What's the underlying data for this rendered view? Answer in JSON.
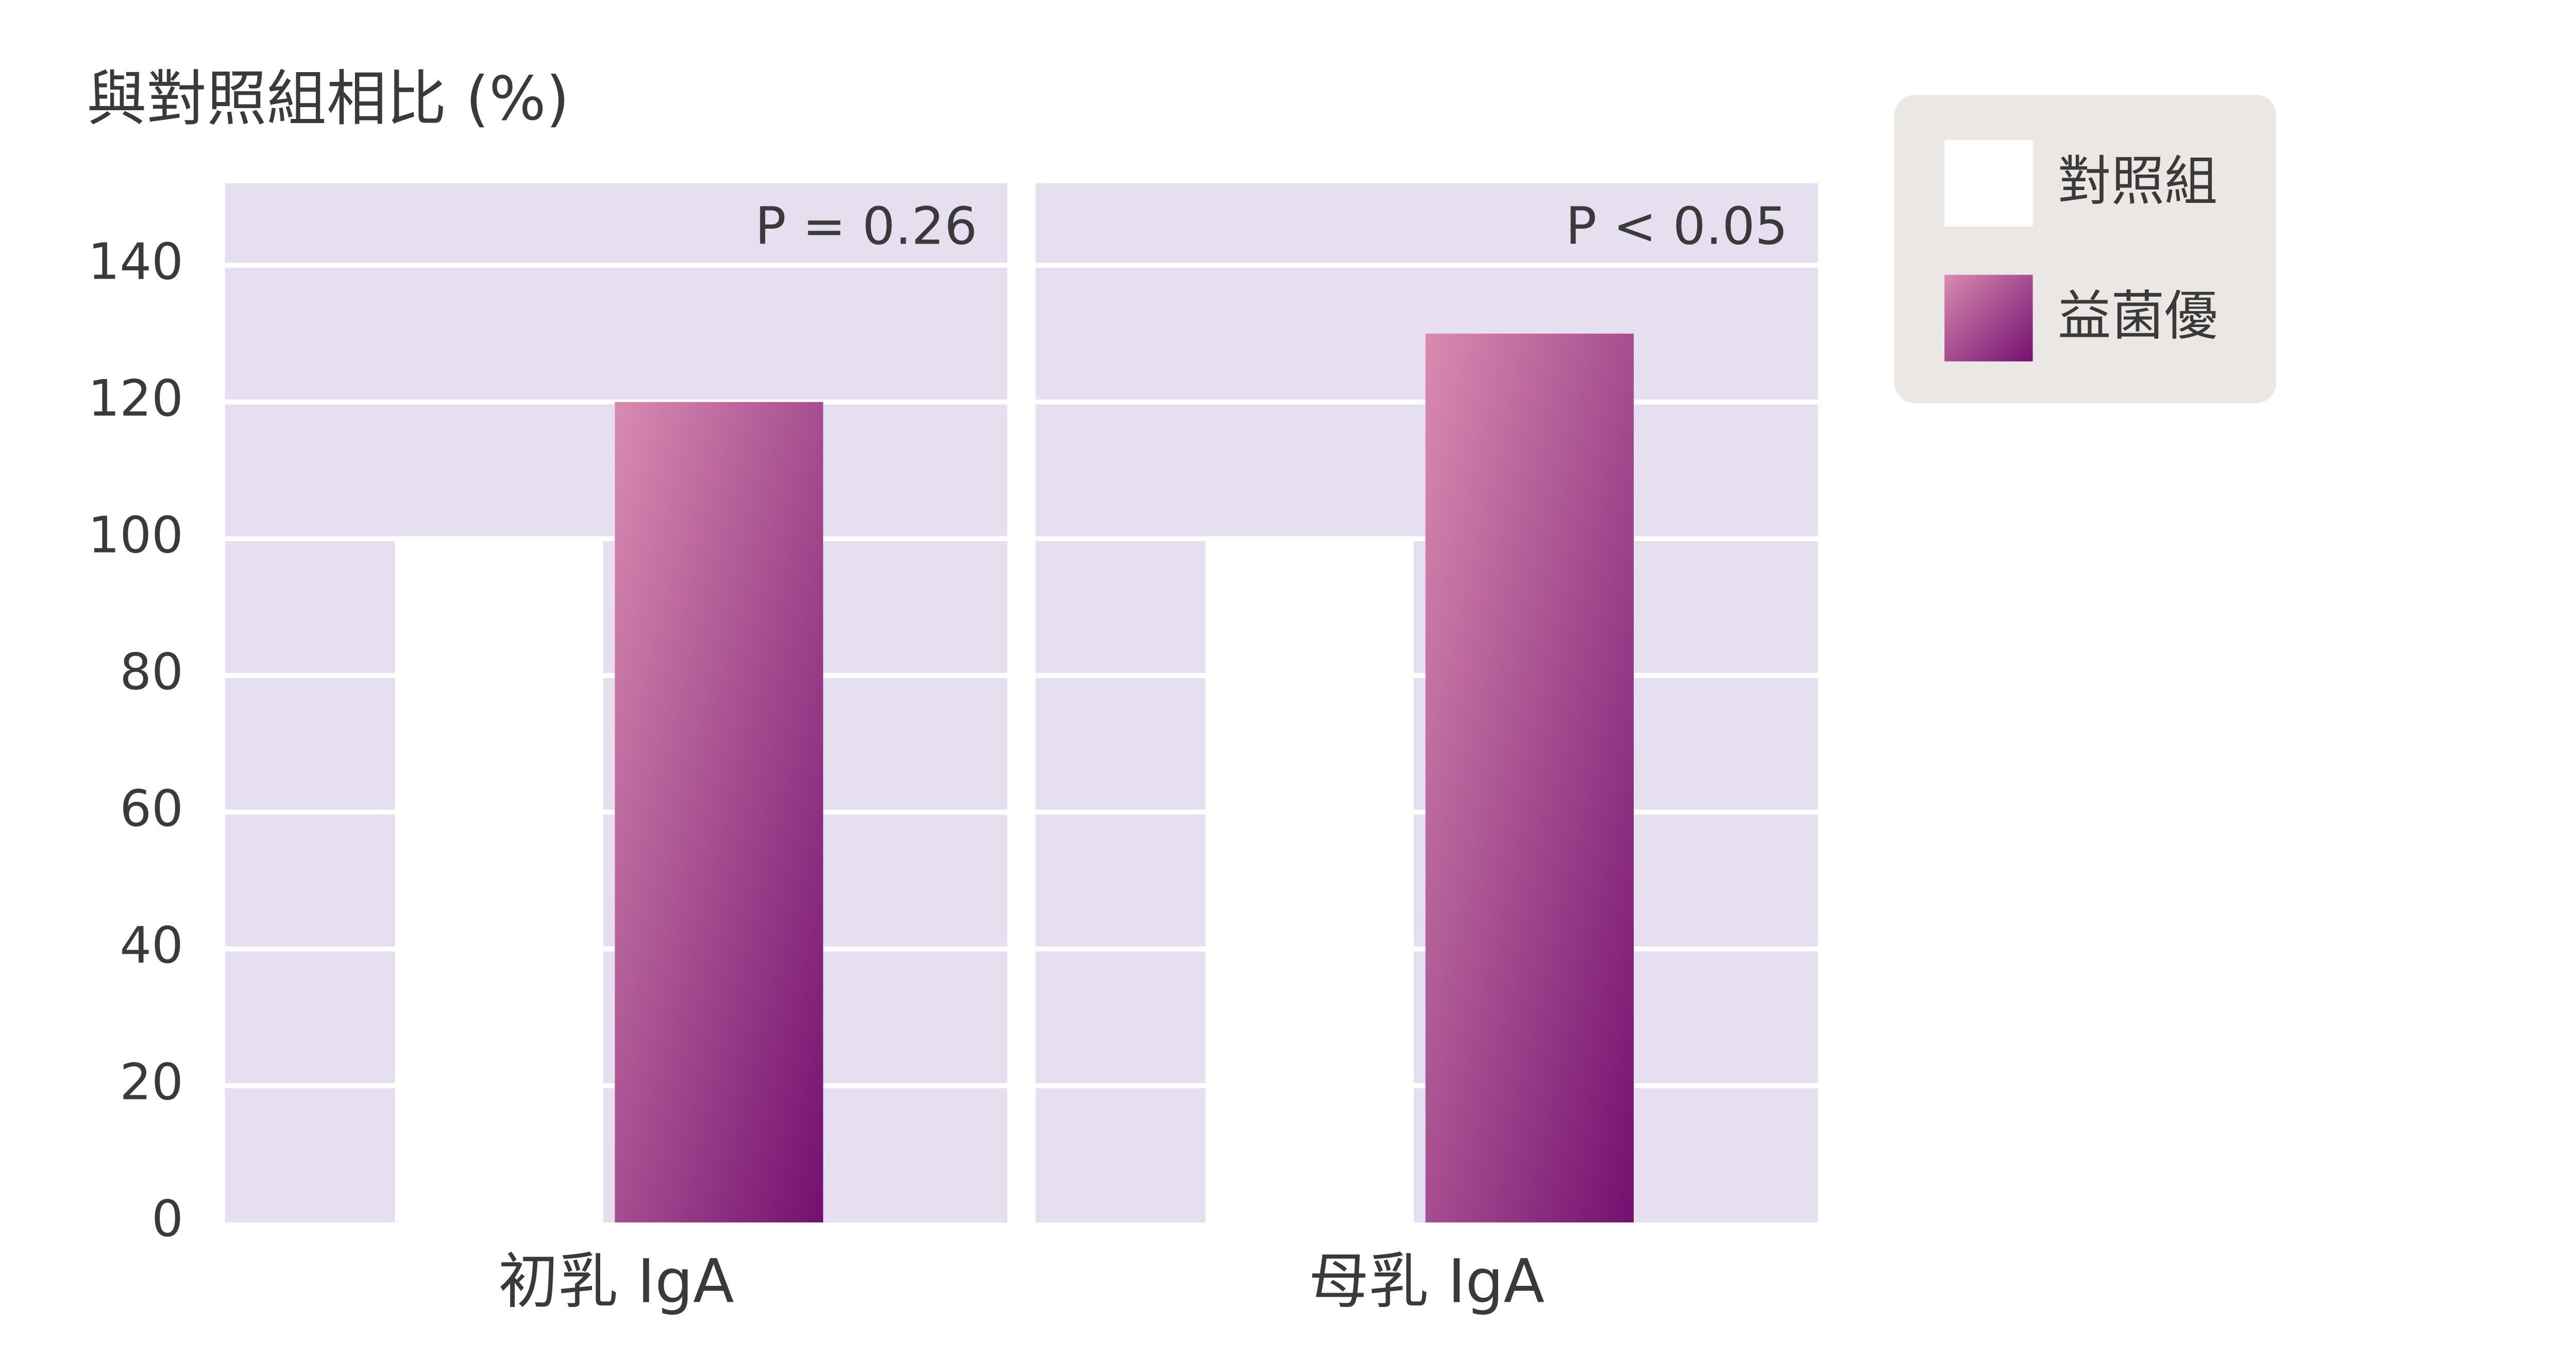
{
  "chart_data": {
    "type": "bar",
    "y_label": "與對照組相比 (%)",
    "categories": [
      "初乳 IgA",
      "母乳 IgA"
    ],
    "annotations": [
      "P = 0.26",
      "P < 0.05"
    ],
    "series": [
      {
        "name": "對照組",
        "color": "#ffffff",
        "values": [
          100,
          100
        ]
      },
      {
        "name": "益菌優",
        "color": [
          "#d98bb0",
          "#731070"
        ],
        "values": [
          120,
          130
        ]
      }
    ],
    "ylim": [
      0,
      152
    ],
    "yticks": [
      0,
      20,
      40,
      60,
      80,
      100,
      120,
      140
    ],
    "grid": true,
    "background": "#e6dff0",
    "legend": "upper right"
  }
}
